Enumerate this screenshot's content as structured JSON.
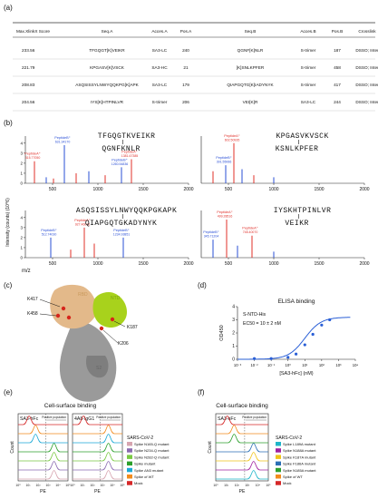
{
  "panels": {
    "a": "(a)",
    "b": "(b)",
    "c": "(c)",
    "d": "(d)",
    "e": "(e)",
    "f": "(f)"
  },
  "table": {
    "headers": [
      "Max.XlinkX Score",
      "Seq.A",
      "Acces.A",
      "Pos.A",
      "Seq.B",
      "Acces.B",
      "Pos.B",
      "Crosslink"
    ],
    "rows": [
      [
        "233.56",
        "TFGQGT[K]VEIKR",
        "SA3-LC",
        "240",
        "QGNF[K]NLR",
        "S-trimer",
        "187",
        "DSSO; Inter"
      ],
      [
        "221.79",
        "KPGASV[K]VSCK",
        "SA3-HC",
        "21",
        "[K]SNLKPFER",
        "S-trimer",
        "458",
        "DSSO; Inter"
      ],
      [
        "208.83",
        "ASQSISSYLNWYQQKPG[K]APK",
        "SA3-LC",
        "179",
        "QIAPGQTG[K]IADYNYK",
        "S-trimer",
        "417",
        "DSSO; Inter"
      ],
      [
        "204.56",
        "IYS[K]HTPINLVR",
        "S-trimer",
        "206",
        "VEI[K]R",
        "SA3-LC",
        "244",
        "DSSO; Inter"
      ]
    ]
  },
  "spectra": {
    "y_axis_label": "Intensity (counts) (10^6)",
    "x_axis_label": "m/z",
    "y_ticks": [
      "0",
      "1",
      "2",
      "3",
      "4"
    ],
    "x_ticks": [
      "500",
      "1000",
      "1500",
      "2000"
    ],
    "plots": [
      {
        "seq_top": "TFGQGTKVEIKR",
        "seq_bottom": "QGNFKNLR",
        "peaks": [
          {
            "mz": 300,
            "h": 0.55,
            "c": "red",
            "label": "PeptideA⁺",
            "sub": "315.77050"
          },
          {
            "mz": 430,
            "h": 0.15,
            "c": "blue"
          },
          {
            "mz": 510,
            "h": 0.12,
            "c": "red"
          },
          {
            "mz": 630,
            "h": 0.95,
            "c": "blue",
            "label": "PeptideB⁺",
            "sub": "631.34170"
          },
          {
            "mz": 760,
            "h": 0.25,
            "c": "red"
          },
          {
            "mz": 900,
            "h": 0.3,
            "c": "blue"
          },
          {
            "mz": 1080,
            "h": 0.2,
            "c": "red"
          },
          {
            "mz": 1260,
            "h": 0.4,
            "c": "blue",
            "label": "PeptideB⁺",
            "sub": "1260.54836"
          },
          {
            "mz": 1370,
            "h": 0.6,
            "c": "red",
            "label": "PeptideA⁺",
            "sub": "1381.67385"
          }
        ]
      },
      {
        "seq_top": "KPGASVKVSCK",
        "seq_bottom": "KSNLKPFER",
        "peaks": [
          {
            "mz": 330,
            "h": 0.3,
            "c": "red"
          },
          {
            "mz": 470,
            "h": 0.45,
            "c": "blue",
            "label": "PeptideB⁺",
            "sub": "391.55066"
          },
          {
            "mz": 560,
            "h": 1.0,
            "c": "red",
            "label": "PeptideA⁺",
            "sub": "602.50935"
          },
          {
            "mz": 650,
            "h": 0.35,
            "c": "blue"
          },
          {
            "mz": 780,
            "h": 0.2,
            "c": "red"
          },
          {
            "mz": 1000,
            "h": 0.15,
            "c": "blue"
          }
        ]
      },
      {
        "seq_top": "ASQSISSYLNWYQQKPGKAPK",
        "seq_bottom": "QIAPGQTGKADYNYK",
        "peaks": [
          {
            "mz": 480,
            "h": 0.5,
            "c": "blue",
            "label": "PeptideB⁺",
            "sub": "512.74030"
          },
          {
            "mz": 700,
            "h": 0.2,
            "c": "red"
          },
          {
            "mz": 850,
            "h": 0.75,
            "c": "red",
            "label": "PeptideA⁺",
            "sub": "927.46012"
          },
          {
            "mz": 960,
            "h": 0.35,
            "c": "red"
          },
          {
            "mz": 1280,
            "h": 0.5,
            "c": "blue",
            "label": "PeptideB⁺",
            "sub": "1234.93851"
          }
        ]
      },
      {
        "seq_top": "IYSKHTPINLVR",
        "seq_bottom": "VEIKR",
        "peaks": [
          {
            "mz": 330,
            "h": 0.45,
            "c": "blue",
            "label": "PeptideB⁺",
            "sub": "345.71204"
          },
          {
            "mz": 480,
            "h": 0.95,
            "c": "red",
            "label": "PeptideA⁺",
            "sub": "499.28516"
          },
          {
            "mz": 600,
            "h": 0.3,
            "c": "blue"
          },
          {
            "mz": 760,
            "h": 0.55,
            "c": "red",
            "label": "PeptideA⁺",
            "sub": "748.40070"
          },
          {
            "mz": 1000,
            "h": 0.15,
            "c": "blue"
          }
        ]
      }
    ]
  },
  "structure": {
    "labels": {
      "rbd": "RBD",
      "ntd": "NTD",
      "s2": "S2",
      "k417": "K417",
      "k458": "K458",
      "k187": "K187",
      "k206": "K206"
    },
    "colors": {
      "rbd": "#e3b98a",
      "ntd": "#a8d21c",
      "s2": "#9a9a9a",
      "highlight": "#d6261c"
    }
  },
  "elisa": {
    "title": "ELISA binding",
    "ylabel": "OD450",
    "xlabel": "[SA3-hFc] (nM)",
    "antigen": "S-NTD-His",
    "ec50": "EC50 = 10 ± 2 nM",
    "y_ticks": [
      "0",
      "1",
      "2",
      "3",
      "4"
    ],
    "x_ticks": [
      "10⁻³",
      "10⁻²",
      "10⁻¹",
      "10⁰",
      "10¹",
      "10²",
      "10³",
      "10⁴"
    ],
    "chart_data": {
      "type": "scatter",
      "x": [
        0.01,
        0.1,
        1,
        3,
        10,
        30,
        100,
        300
      ],
      "y": [
        0.05,
        0.05,
        0.15,
        0.4,
        1.1,
        1.9,
        2.6,
        3.0
      ],
      "ylim": [
        0,
        4
      ],
      "xlim_log10": [
        -3,
        4
      ]
    },
    "color": "#2a5fd6"
  },
  "flow_e": {
    "title": "Cell-surface binding",
    "panel1": "SA3-hFc",
    "panel2": "4A8-IgG1",
    "positive": "Positive population",
    "xlabel": "PE",
    "ylabel": "Count",
    "x_ticks": [
      "10⁰",
      "10¹",
      "10²",
      "10³",
      "10⁴",
      "10⁵"
    ],
    "legend_title": "SARS-CoV-2",
    "legend": [
      {
        "label": "Spike N165-Q mutant",
        "color": "#d7a5b0"
      },
      {
        "label": "Spike N234-Q mutant",
        "color": "#8b6bb1"
      },
      {
        "label": "Spike N282-Q mutant",
        "color": "#7ac943"
      },
      {
        "label": "Spike mutant",
        "color": "#2ca02c"
      },
      {
        "label": "Spike ΔN3 mutant",
        "color": "#1ba9d6"
      },
      {
        "label": "Spike of WT",
        "color": "#f28b1c"
      },
      {
        "label": "Mock",
        "color": "#d62728"
      }
    ]
  },
  "flow_f": {
    "title": "Cell-surface binding",
    "panel1": "SA3-hFc",
    "positive": "Positive population",
    "xlabel": "PE",
    "ylabel": "Count",
    "x_ticks": [
      "10⁰",
      "10¹",
      "10²",
      "10³",
      "10⁴",
      "10⁵"
    ],
    "legend_title": "SARS-CoV-2",
    "legend": [
      {
        "label": "Spike L189A mutant",
        "color": "#1fb5c9"
      },
      {
        "label": "Spike N188A mutant",
        "color": "#a020a0"
      },
      {
        "label": "Spike K187A mutant",
        "color": "#f0c419"
      },
      {
        "label": "Spike F186A mutant",
        "color": "#2b6fb5"
      },
      {
        "label": "Spike N185A mutant",
        "color": "#2ca02c"
      },
      {
        "label": "Spike of WT",
        "color": "#f28b1c"
      },
      {
        "label": "Mock",
        "color": "#d62728"
      }
    ]
  }
}
